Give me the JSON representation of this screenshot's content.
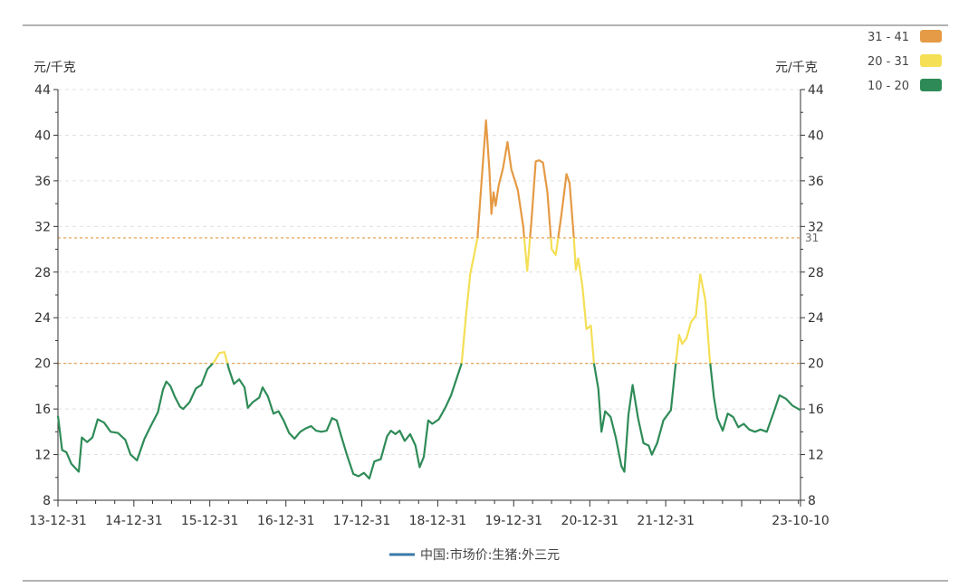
{
  "chart_data": {
    "type": "line",
    "units": {
      "left": "元/千克",
      "right": "元/千克"
    },
    "ylim": [
      8,
      44
    ],
    "yticks": [
      8,
      12,
      16,
      20,
      24,
      28,
      32,
      36,
      40,
      44
    ],
    "x_start": "2013-12-31",
    "x_end": "2023-10-10",
    "xtick_labels": [
      {
        "date": "2013-12-31",
        "label": "13-12-31"
      },
      {
        "date": "2014-12-31",
        "label": "14-12-31"
      },
      {
        "date": "2015-12-31",
        "label": "15-12-31"
      },
      {
        "date": "2016-12-31",
        "label": "16-12-31"
      },
      {
        "date": "2017-12-31",
        "label": "17-12-31"
      },
      {
        "date": "2018-12-31",
        "label": "18-12-31"
      },
      {
        "date": "2019-12-31",
        "label": "19-12-31"
      },
      {
        "date": "2020-12-31",
        "label": "20-12-31"
      },
      {
        "date": "2021-12-31",
        "label": "21-12-31"
      },
      {
        "date": "2022-12-31",
        "label": ""
      },
      {
        "date": "2023-10-10",
        "label": "23-10-10"
      }
    ],
    "grid": "horizontal dashed",
    "legend_position": "bottom-center",
    "series": [
      {
        "name": "中国:市场价:生猪:外三元",
        "legend_color": "#3a78a8",
        "points": [
          [
            "2013-12-31",
            15.4
          ],
          [
            "2014-01-20",
            12.4
          ],
          [
            "2014-02-10",
            12.2
          ],
          [
            "2014-03-05",
            11.2
          ],
          [
            "2014-04-10",
            10.5
          ],
          [
            "2014-04-25",
            13.5
          ],
          [
            "2014-05-20",
            13.1
          ],
          [
            "2014-06-15",
            13.5
          ],
          [
            "2014-07-10",
            15.1
          ],
          [
            "2014-08-10",
            14.8
          ],
          [
            "2014-09-10",
            14.0
          ],
          [
            "2014-10-15",
            13.9
          ],
          [
            "2014-11-20",
            13.3
          ],
          [
            "2014-12-15",
            12.0
          ],
          [
            "2015-01-15",
            11.5
          ],
          [
            "2015-02-20",
            13.4
          ],
          [
            "2015-03-25",
            14.6
          ],
          [
            "2015-04-25",
            15.7
          ],
          [
            "2015-05-20",
            17.7
          ],
          [
            "2015-06-05",
            18.4
          ],
          [
            "2015-06-25",
            18.0
          ],
          [
            "2015-07-15",
            17.1
          ],
          [
            "2015-08-10",
            16.2
          ],
          [
            "2015-08-25",
            16.0
          ],
          [
            "2015-09-25",
            16.6
          ],
          [
            "2015-10-25",
            17.8
          ],
          [
            "2015-11-20",
            18.1
          ],
          [
            "2015-12-20",
            19.5
          ],
          [
            "2016-01-20",
            20.1
          ],
          [
            "2016-02-15",
            20.9
          ],
          [
            "2016-03-10",
            21.0
          ],
          [
            "2016-04-01",
            19.5
          ],
          [
            "2016-04-25",
            18.2
          ],
          [
            "2016-05-20",
            18.6
          ],
          [
            "2016-06-15",
            17.9
          ],
          [
            "2016-07-01",
            16.1
          ],
          [
            "2016-07-25",
            16.6
          ],
          [
            "2016-08-25",
            17.0
          ],
          [
            "2016-09-10",
            17.9
          ],
          [
            "2016-10-05",
            17.1
          ],
          [
            "2016-11-01",
            15.6
          ],
          [
            "2016-11-25",
            15.8
          ],
          [
            "2016-12-20",
            15.0
          ],
          [
            "2017-01-15",
            13.9
          ],
          [
            "2017-02-10",
            13.4
          ],
          [
            "2017-03-10",
            14.0
          ],
          [
            "2017-04-05",
            14.3
          ],
          [
            "2017-05-01",
            14.5
          ],
          [
            "2017-05-25",
            14.1
          ],
          [
            "2017-06-20",
            14.0
          ],
          [
            "2017-07-15",
            14.1
          ],
          [
            "2017-08-10",
            15.2
          ],
          [
            "2017-09-01",
            15.0
          ],
          [
            "2017-09-20",
            13.8
          ],
          [
            "2017-10-20",
            12.0
          ],
          [
            "2017-11-20",
            10.3
          ],
          [
            "2017-12-15",
            10.1
          ],
          [
            "2018-01-10",
            10.4
          ],
          [
            "2018-02-05",
            9.9
          ],
          [
            "2018-03-01",
            11.4
          ],
          [
            "2018-04-01",
            11.6
          ],
          [
            "2018-05-01",
            13.6
          ],
          [
            "2018-05-20",
            14.1
          ],
          [
            "2018-06-10",
            13.8
          ],
          [
            "2018-07-01",
            14.1
          ],
          [
            "2018-07-25",
            13.2
          ],
          [
            "2018-08-20",
            13.8
          ],
          [
            "2018-09-15",
            12.8
          ],
          [
            "2018-10-05",
            10.9
          ],
          [
            "2018-10-25",
            11.8
          ],
          [
            "2018-11-15",
            15.0
          ],
          [
            "2018-12-05",
            14.7
          ],
          [
            "2019-01-05",
            15.1
          ],
          [
            "2019-02-05",
            16.1
          ],
          [
            "2019-03-05",
            17.2
          ],
          [
            "2019-04-05",
            18.9
          ],
          [
            "2019-04-25",
            20.0
          ],
          [
            "2019-05-15",
            24.0
          ],
          [
            "2019-06-05",
            27.8
          ],
          [
            "2019-06-25",
            29.6
          ],
          [
            "2019-07-10",
            31.0
          ],
          [
            "2019-08-01",
            36.5
          ],
          [
            "2019-08-20",
            41.3
          ],
          [
            "2019-09-05",
            37.0
          ],
          [
            "2019-09-15",
            33.1
          ],
          [
            "2019-09-25",
            35.0
          ],
          [
            "2019-10-05",
            33.8
          ],
          [
            "2019-10-20",
            35.6
          ],
          [
            "2019-11-10",
            37.1
          ],
          [
            "2019-12-01",
            39.4
          ],
          [
            "2019-12-20",
            37.0
          ],
          [
            "2020-01-20",
            35.2
          ],
          [
            "2020-02-15",
            32.0
          ],
          [
            "2020-03-05",
            28.1
          ],
          [
            "2020-03-25",
            32.4
          ],
          [
            "2020-04-15",
            37.7
          ],
          [
            "2020-05-01",
            37.8
          ],
          [
            "2020-05-20",
            37.6
          ],
          [
            "2020-06-10",
            35.0
          ],
          [
            "2020-07-01",
            30.0
          ],
          [
            "2020-07-20",
            29.5
          ],
          [
            "2020-08-15",
            32.8
          ],
          [
            "2020-09-10",
            36.6
          ],
          [
            "2020-09-25",
            35.8
          ],
          [
            "2020-10-15",
            31.1
          ],
          [
            "2020-10-25",
            28.2
          ],
          [
            "2020-11-05",
            29.2
          ],
          [
            "2020-11-25",
            26.8
          ],
          [
            "2020-12-15",
            23.0
          ],
          [
            "2021-01-05",
            23.3
          ],
          [
            "2021-01-20",
            20.0
          ],
          [
            "2021-02-10",
            17.8
          ],
          [
            "2021-02-25",
            14.0
          ],
          [
            "2021-03-15",
            15.8
          ],
          [
            "2021-04-10",
            15.3
          ],
          [
            "2021-05-05",
            13.5
          ],
          [
            "2021-06-01",
            11.0
          ],
          [
            "2021-06-15",
            10.5
          ],
          [
            "2021-07-05",
            15.5
          ],
          [
            "2021-07-25",
            18.1
          ],
          [
            "2021-08-20",
            15.2
          ],
          [
            "2021-09-15",
            13.0
          ],
          [
            "2021-10-10",
            12.8
          ],
          [
            "2021-10-25",
            12.0
          ],
          [
            "2021-11-20",
            13.0
          ],
          [
            "2021-12-20",
            15.0
          ],
          [
            "2022-01-25",
            15.9
          ],
          [
            "2022-02-15",
            19.6
          ],
          [
            "2022-03-05",
            22.5
          ],
          [
            "2022-03-20",
            21.7
          ],
          [
            "2022-04-10",
            22.2
          ],
          [
            "2022-05-01",
            23.6
          ],
          [
            "2022-05-25",
            24.2
          ],
          [
            "2022-06-15",
            27.8
          ],
          [
            "2022-07-10",
            25.5
          ],
          [
            "2022-07-30",
            20.5
          ],
          [
            "2022-08-20",
            17.0
          ],
          [
            "2022-09-05",
            15.2
          ],
          [
            "2022-10-01",
            14.1
          ],
          [
            "2022-10-25",
            15.6
          ],
          [
            "2022-11-20",
            15.3
          ],
          [
            "2022-12-15",
            14.4
          ],
          [
            "2023-01-10",
            14.7
          ],
          [
            "2023-02-05",
            14.2
          ],
          [
            "2023-03-05",
            14.0
          ],
          [
            "2023-04-01",
            14.2
          ],
          [
            "2023-05-01",
            14.0
          ],
          [
            "2023-06-01",
            15.6
          ],
          [
            "2023-07-01",
            17.2
          ],
          [
            "2023-08-01",
            16.9
          ],
          [
            "2023-09-01",
            16.3
          ],
          [
            "2023-10-10",
            15.9
          ]
        ]
      }
    ],
    "visual_map": [
      {
        "label": "31 - 41",
        "min": 31,
        "max": 41,
        "color": "#e59a45"
      },
      {
        "label": "20 - 31",
        "min": 20,
        "max": 31,
        "color": "#f4df55"
      },
      {
        "label": "10 - 20",
        "min": 10,
        "max": 20,
        "color": "#2e8b57"
      }
    ],
    "reference_lines": [
      {
        "value": 31,
        "label": "31",
        "color": "#e59a45"
      },
      {
        "value": 20,
        "label": "",
        "color": "#e59a45"
      }
    ]
  }
}
